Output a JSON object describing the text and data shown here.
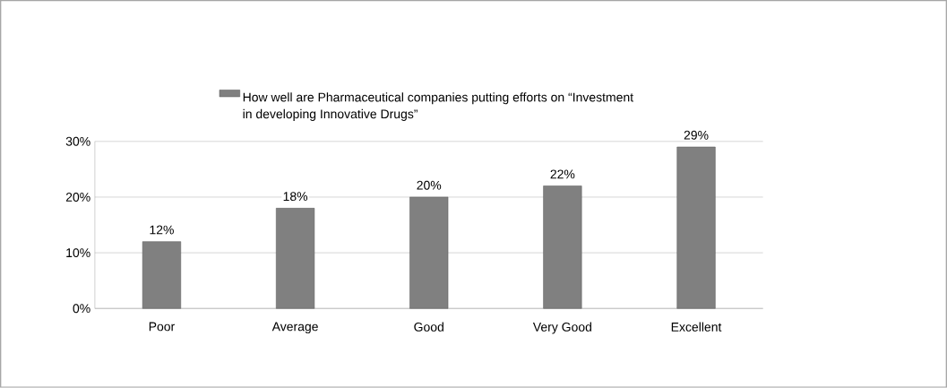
{
  "chart_data": {
    "type": "bar",
    "categories": [
      "Poor",
      "Average",
      "Good",
      "Very Good",
      "Excellent"
    ],
    "series": [
      {
        "name": "How well are Pharmaceutical companies putting efforts on “Investment in developing Innovative Drugs”",
        "color": "#808080",
        "values": [
          12,
          18,
          20,
          22,
          29
        ],
        "value_labels": [
          "12%",
          "18%",
          "20%",
          "22%",
          "29%"
        ]
      }
    ],
    "ylim": [
      0,
      30
    ],
    "yticks": [
      {
        "value": 0,
        "label": "0%"
      },
      {
        "value": 10,
        "label": "10%"
      },
      {
        "value": 20,
        "label": "20%"
      },
      {
        "value": 30,
        "label": "30%"
      }
    ],
    "grid": "y",
    "legend": "top"
  }
}
